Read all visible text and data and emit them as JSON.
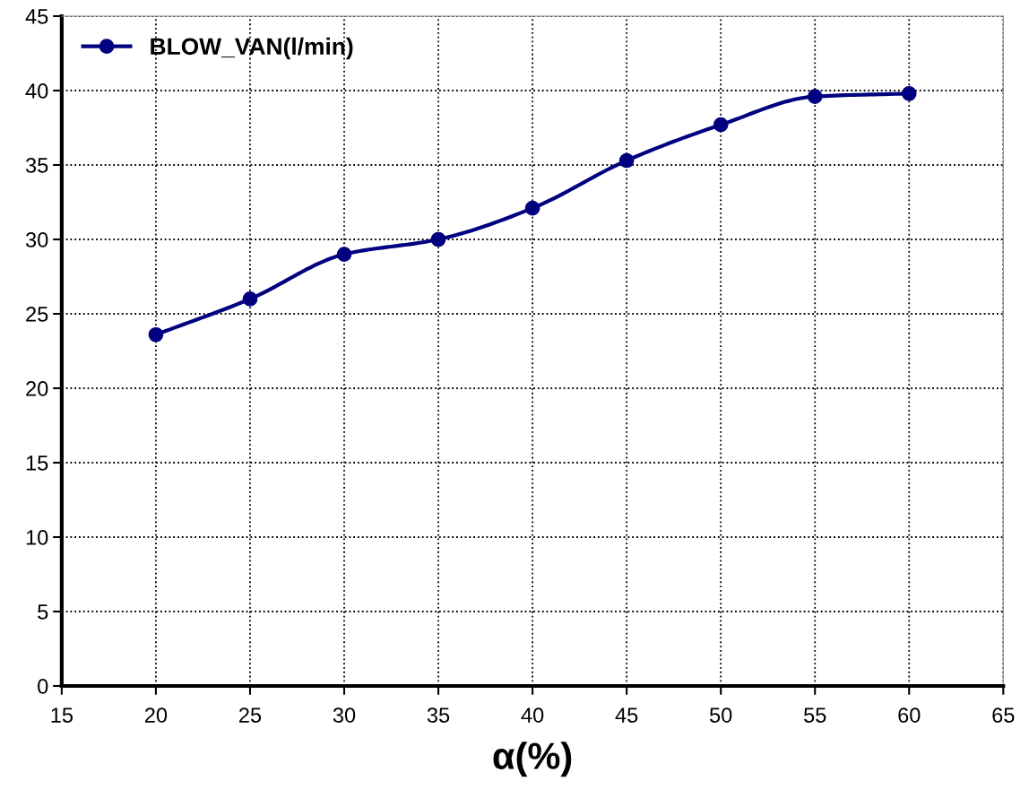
{
  "chart_data": {
    "type": "line",
    "xlabel": "α(%)",
    "x": [
      20,
      25,
      30,
      35,
      40,
      45,
      50,
      55,
      60
    ],
    "series": [
      {
        "name": "BLOW_VAN(l/min)",
        "color": "#000080",
        "values": [
          23.6,
          26.0,
          29.0,
          30.0,
          32.1,
          35.3,
          37.7,
          39.6,
          39.8
        ]
      }
    ],
    "xlim": [
      15,
      65
    ],
    "xticks": [
      15,
      20,
      25,
      30,
      35,
      40,
      45,
      50,
      55,
      60,
      65
    ],
    "ylim": [
      0,
      45
    ],
    "yticks": [
      0,
      5,
      10,
      15,
      20,
      25,
      30,
      35,
      40,
      45
    ],
    "grid": true,
    "legend": "top left",
    "marker": "circle",
    "line_style": "solid"
  }
}
